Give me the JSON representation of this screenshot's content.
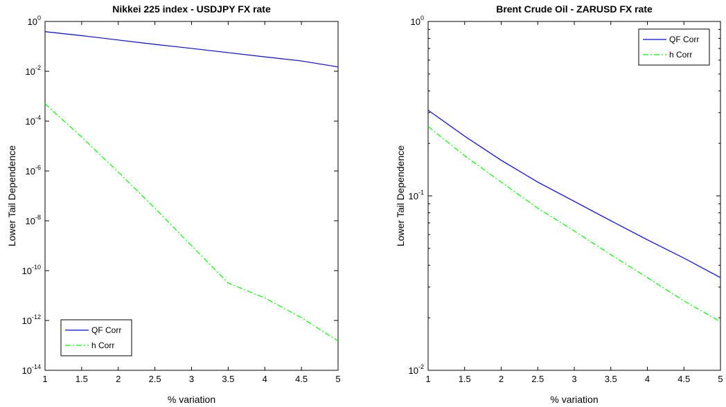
{
  "chart_data": [
    {
      "type": "line",
      "title": "Nikkei 225 index - USDJPY FX rate",
      "xlabel": "% variation",
      "ylabel": "Lower Tail Dependence",
      "xlim": [
        1,
        5
      ],
      "ylim": [
        1e-14,
        1
      ],
      "yscale": "log",
      "grid": false,
      "legend_position": "bottom-left",
      "x_ticks": [
        "1",
        "1.5",
        "2",
        "2.5",
        "3",
        "3.5",
        "4",
        "4.5",
        "5"
      ],
      "y_ticks": [
        {
          "base": "10",
          "exp": "-14",
          "value": 1e-14
        },
        {
          "base": "10",
          "exp": "-12",
          "value": 1e-12
        },
        {
          "base": "10",
          "exp": "-10",
          "value": 1e-10
        },
        {
          "base": "10",
          "exp": "-8",
          "value": 1e-08
        },
        {
          "base": "10",
          "exp": "-6",
          "value": 1e-06
        },
        {
          "base": "10",
          "exp": "-4",
          "value": 0.0001
        },
        {
          "base": "10",
          "exp": "-2",
          "value": 0.01
        },
        {
          "base": "10",
          "exp": "0",
          "value": 1
        }
      ],
      "series": [
        {
          "name": "QF Corr",
          "color": "#0000ff",
          "style": "solid",
          "x": [
            1,
            1.5,
            2,
            2.5,
            3,
            3.5,
            4,
            4.5,
            5
          ],
          "y": [
            0.39,
            0.27,
            0.18,
            0.12,
            0.083,
            0.056,
            0.038,
            0.026,
            0.015
          ]
        },
        {
          "name": "h Corr",
          "color": "#00ff00",
          "style": "dashdot",
          "x": [
            1,
            1.5,
            2,
            2.5,
            3,
            3.5,
            4,
            4.5,
            5
          ],
          "y": [
            0.0005,
            2.3e-05,
            9e-07,
            3.2e-08,
            1e-09,
            3.2e-11,
            8e-12,
            1.3e-12,
            1.5e-13
          ]
        }
      ]
    },
    {
      "type": "line",
      "title": "Brent Crude Oil - ZARUSD FX rate",
      "xlabel": "% variation",
      "ylabel": "Lower Tail Dependence",
      "xlim": [
        1,
        5
      ],
      "ylim": [
        0.01,
        1
      ],
      "yscale": "log",
      "grid": false,
      "legend_position": "top-right",
      "x_ticks": [
        "1",
        "1.5",
        "2",
        "2.5",
        "3",
        "3.5",
        "4",
        "4.5",
        "5"
      ],
      "y_ticks": [
        {
          "base": "10",
          "exp": "-2",
          "value": 0.01
        },
        {
          "base": "10",
          "exp": "-1",
          "value": 0.1
        },
        {
          "base": "10",
          "exp": "0",
          "value": 1
        }
      ],
      "series": [
        {
          "name": "QF Corr",
          "color": "#0000ff",
          "style": "solid",
          "x": [
            1,
            1.5,
            2,
            2.5,
            3,
            3.5,
            4,
            4.5,
            5
          ],
          "y": [
            0.31,
            0.22,
            0.16,
            0.12,
            0.093,
            0.072,
            0.056,
            0.044,
            0.034
          ]
        },
        {
          "name": "h Corr",
          "color": "#00ff00",
          "style": "dashdot",
          "x": [
            1,
            1.5,
            2,
            2.5,
            3,
            3.5,
            4,
            4.5,
            5
          ],
          "y": [
            0.25,
            0.17,
            0.12,
            0.085,
            0.063,
            0.046,
            0.034,
            0.025,
            0.019
          ]
        }
      ]
    }
  ]
}
